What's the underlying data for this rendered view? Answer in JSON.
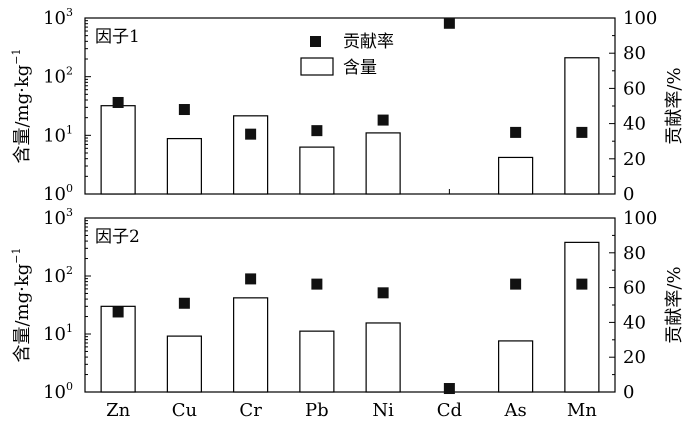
{
  "chart_data": [
    {
      "type": "bar",
      "panel_label": "因子1",
      "categories": [
        "Zn",
        "Cu",
        "Cr",
        "Pb",
        "Ni",
        "Cd",
        "As",
        "Mn"
      ],
      "y_log": true,
      "ylim_left": [
        1,
        1000
      ],
      "ylim_right": [
        0,
        100
      ],
      "ylabel_left_base": "含量/mg·kg",
      "ylabel_left_exp": "−1",
      "ylabel_right": "贡献率/%",
      "left_ticks": [
        {
          "base": "10",
          "exp": "0",
          "value": 1
        },
        {
          "base": "10",
          "exp": "1",
          "value": 10
        },
        {
          "base": "10",
          "exp": "2",
          "value": 100
        },
        {
          "base": "10",
          "exp": "3",
          "value": 1000
        }
      ],
      "right_ticks": [
        "0",
        "20",
        "40",
        "60",
        "80",
        "100"
      ],
      "grid": false,
      "legend_position": "top-center",
      "series": [
        {
          "name": "含量",
          "kind": "bar",
          "axis": "left",
          "values": [
            32,
            8.8,
            21.5,
            6.3,
            11,
            null,
            4.2,
            210
          ]
        },
        {
          "name": "贡献率",
          "kind": "scatter",
          "axis": "right",
          "values": [
            52,
            48,
            34,
            36,
            42,
            97,
            35,
            35
          ]
        }
      ]
    },
    {
      "type": "bar",
      "panel_label": "因子2",
      "categories": [
        "Zn",
        "Cu",
        "Cr",
        "Pb",
        "Ni",
        "Cd",
        "As",
        "Mn"
      ],
      "y_log": true,
      "ylim_left": [
        1,
        1000
      ],
      "ylim_right": [
        0,
        100
      ],
      "ylabel_left_base": "含量/mg·kg",
      "ylabel_left_exp": "−1",
      "ylabel_right": "贡献率/%",
      "left_ticks": [
        {
          "base": "10",
          "exp": "0",
          "value": 1
        },
        {
          "base": "10",
          "exp": "1",
          "value": 10
        },
        {
          "base": "10",
          "exp": "2",
          "value": 100
        },
        {
          "base": "10",
          "exp": "3",
          "value": 1000
        }
      ],
      "right_ticks": [
        "0",
        "20",
        "40",
        "60",
        "80",
        "100"
      ],
      "grid": false,
      "series": [
        {
          "name": "含量",
          "kind": "bar",
          "axis": "left",
          "values": [
            30,
            9.2,
            42,
            11.2,
            15.5,
            null,
            7.6,
            380
          ]
        },
        {
          "name": "贡献率",
          "kind": "scatter",
          "axis": "right",
          "values": [
            46,
            51,
            65,
            62,
            57,
            2,
            62,
            62
          ]
        }
      ]
    }
  ]
}
